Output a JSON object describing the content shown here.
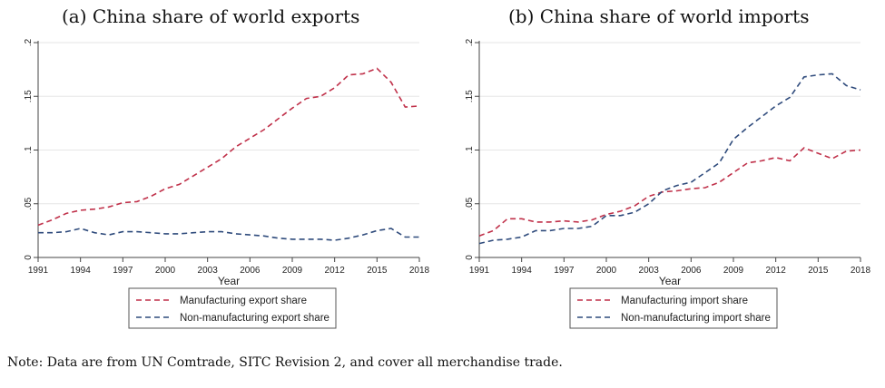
{
  "note": "Note: Data are from UN Comtrade, SITC Revision 2, and cover all merchandise trade.",
  "colors": {
    "manufacturing": "#c0314a",
    "non_manufacturing": "#2f4b7c",
    "grid": "#e6e6e6",
    "axis": "#444444"
  },
  "chart_data": [
    {
      "type": "line",
      "title": "(a) China share of world exports",
      "xlabel": "Year",
      "ylabel": "",
      "xlim": [
        1991,
        2018
      ],
      "ylim": [
        0,
        0.2
      ],
      "grid": true,
      "legend_position": "bottom",
      "x_ticks": [
        "1991",
        "1994",
        "1997",
        "2000",
        "2003",
        "2006",
        "2009",
        "2012",
        "2015",
        "2018"
      ],
      "y_ticks": [
        "0",
        ".05",
        ".1",
        ".15",
        ".2"
      ],
      "x": [
        1991,
        1992,
        1993,
        1994,
        1995,
        1996,
        1997,
        1998,
        1999,
        2000,
        2001,
        2002,
        2003,
        2004,
        2005,
        2006,
        2007,
        2008,
        2009,
        2010,
        2011,
        2012,
        2013,
        2014,
        2015,
        2016,
        2017,
        2018
      ],
      "series": [
        {
          "name": "Manufacturing export share",
          "color": "#c0314a",
          "values": [
            0.03,
            0.035,
            0.041,
            0.044,
            0.045,
            0.047,
            0.051,
            0.052,
            0.057,
            0.064,
            0.068,
            0.076,
            0.084,
            0.092,
            0.103,
            0.111,
            0.119,
            0.129,
            0.139,
            0.148,
            0.15,
            0.158,
            0.17,
            0.171,
            0.176,
            0.163,
            0.14,
            0.141
          ]
        },
        {
          "name": "Non-manufacturing export share",
          "color": "#2f4b7c",
          "values": [
            0.023,
            0.023,
            0.024,
            0.027,
            0.023,
            0.021,
            0.024,
            0.024,
            0.023,
            0.022,
            0.022,
            0.023,
            0.024,
            0.024,
            0.022,
            0.021,
            0.02,
            0.018,
            0.017,
            0.017,
            0.017,
            0.016,
            0.018,
            0.021,
            0.025,
            0.027,
            0.019,
            0.019
          ]
        }
      ]
    },
    {
      "type": "line",
      "title": "(b) China share of world imports",
      "xlabel": "Year",
      "ylabel": "",
      "xlim": [
        1991,
        2018
      ],
      "ylim": [
        0,
        0.2
      ],
      "grid": true,
      "legend_position": "bottom",
      "x_ticks": [
        "1991",
        "1994",
        "1997",
        "2000",
        "2003",
        "2006",
        "2009",
        "2012",
        "2015",
        "2018"
      ],
      "y_ticks": [
        "0",
        ".05",
        ".1",
        ".15",
        ".2"
      ],
      "x": [
        1991,
        1992,
        1993,
        1994,
        1995,
        1996,
        1997,
        1998,
        1999,
        2000,
        2001,
        2002,
        2003,
        2004,
        2005,
        2006,
        2007,
        2008,
        2009,
        2010,
        2011,
        2012,
        2013,
        2014,
        2015,
        2016,
        2017,
        2018
      ],
      "series": [
        {
          "name": "Manufacturing import share",
          "color": "#c0314a",
          "values": [
            0.02,
            0.025,
            0.036,
            0.036,
            0.033,
            0.033,
            0.034,
            0.033,
            0.035,
            0.04,
            0.043,
            0.048,
            0.057,
            0.061,
            0.062,
            0.064,
            0.065,
            0.07,
            0.079,
            0.088,
            0.09,
            0.093,
            0.09,
            0.102,
            0.097,
            0.092,
            0.099,
            0.1
          ]
        },
        {
          "name": "Non-manufacturing import share",
          "color": "#2f4b7c",
          "values": [
            0.013,
            0.016,
            0.017,
            0.019,
            0.025,
            0.025,
            0.027,
            0.027,
            0.029,
            0.039,
            0.039,
            0.042,
            0.05,
            0.062,
            0.067,
            0.07,
            0.079,
            0.088,
            0.11,
            0.121,
            0.131,
            0.141,
            0.149,
            0.168,
            0.17,
            0.171,
            0.16,
            0.156
          ]
        }
      ]
    }
  ]
}
